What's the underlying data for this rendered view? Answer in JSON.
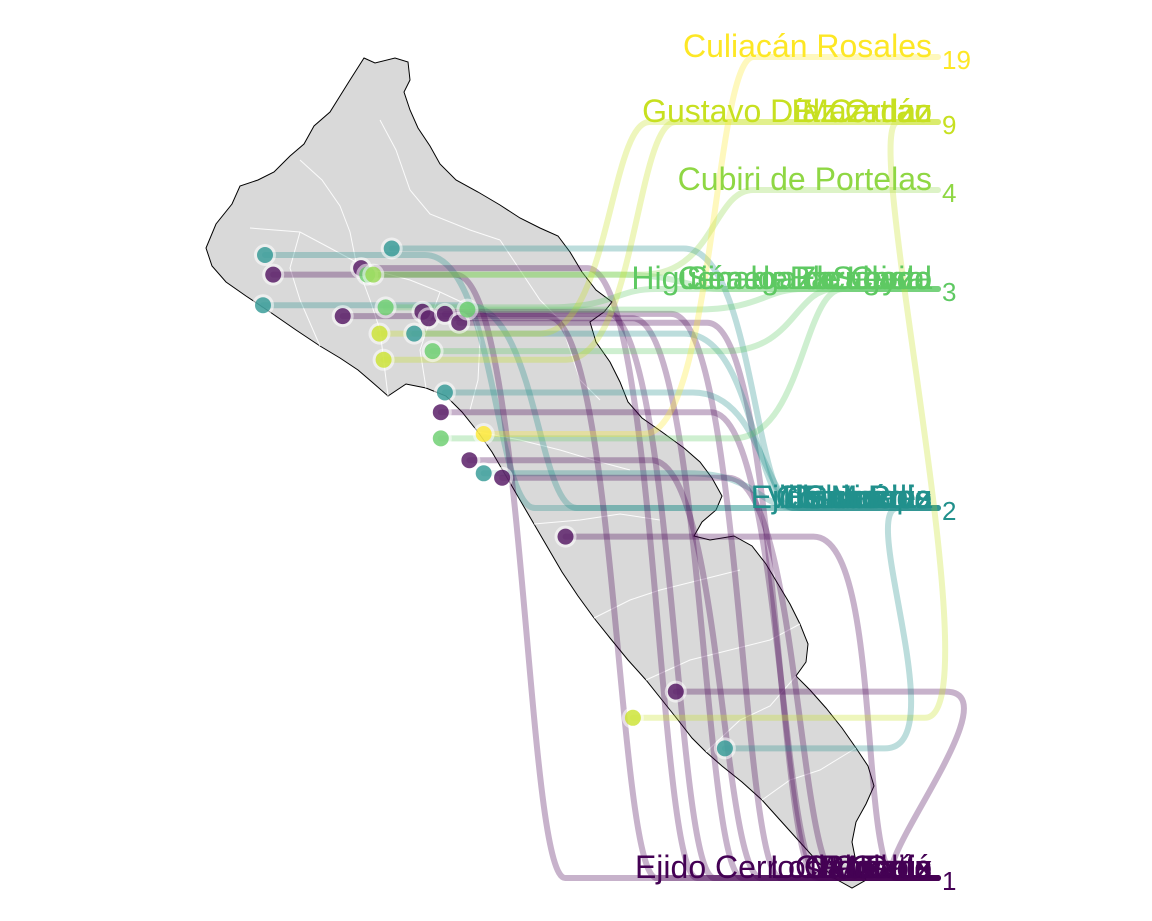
{
  "map": {
    "region": "Sinaloa",
    "region_fill": "#d9d9d9",
    "boundary_color": "#ffffff",
    "outline_color": "#000000"
  },
  "color_scale": {
    "name": "viridis",
    "stops": {
      "1": "#440154",
      "2": "#21908c",
      "3": "#5ec962",
      "4": "#8fd744",
      "9": "#c7e020",
      "19": "#fde725"
    }
  },
  "groups": [
    {
      "count": 19,
      "count_label": "19",
      "color": "#fde725",
      "labels": [
        "Culiacán Rosales"
      ]
    },
    {
      "count": 9,
      "count_label": "9",
      "color": "#c7e020",
      "labels": [
        "Gustavo Díaz Ordaz",
        "Mazatlán",
        "El Carrizo"
      ]
    },
    {
      "count": 4,
      "count_label": "4",
      "color": "#8fd744",
      "labels": [
        "Cubiri de Portelas"
      ]
    },
    {
      "count": 3,
      "count_label": "3",
      "color": "#5ec962",
      "labels": [
        "Ciénega de Casal",
        "Sinaloa de Leyva",
        "Bacubirito",
        "Higuera de Zaragoza",
        "El Salado"
      ]
    },
    {
      "count": 2,
      "count_label": "2",
      "color": "#21908c",
      "labels": [
        "Ejido Mochis",
        "Guasave",
        "Escuinapa",
        "Concordia",
        "Eldorado",
        "San Blas",
        "Villa Juárez",
        "Tamazula",
        "Costa Rica"
      ]
    },
    {
      "count": 1,
      "count_label": "1",
      "color": "#440154",
      "labels": [
        "Ejido Cerro Cabezón",
        "Choix",
        "Los Mochis",
        "Mocorito",
        "Cosalá",
        "Elota",
        "Chametla",
        "La Cruz",
        "Rosario"
      ]
    }
  ],
  "points": [
    {
      "lon": -108.85,
      "lat": 26.42,
      "count": 2
    },
    {
      "lon": -108.81,
      "lat": 26.33,
      "count": 1
    },
    {
      "lon": -108.86,
      "lat": 26.19,
      "count": 2
    },
    {
      "lon": -108.38,
      "lat": 26.36,
      "count": 1
    },
    {
      "lon": -108.35,
      "lat": 26.33,
      "count": 3
    },
    {
      "lon": -108.32,
      "lat": 26.33,
      "count": 4
    },
    {
      "lon": -108.23,
      "lat": 26.45,
      "count": 2
    },
    {
      "lon": -108.26,
      "lat": 26.18,
      "count": 3
    },
    {
      "lon": -108.08,
      "lat": 26.16,
      "count": 1
    },
    {
      "lon": -108.05,
      "lat": 26.13,
      "count": 1
    },
    {
      "lon": -107.97,
      "lat": 26.15,
      "count": 1
    },
    {
      "lon": -107.9,
      "lat": 26.11,
      "count": 1
    },
    {
      "lon": -108.12,
      "lat": 26.06,
      "count": 2
    },
    {
      "lon": -108.03,
      "lat": 25.98,
      "count": 3
    },
    {
      "lon": -108.29,
      "lat": 26.06,
      "count": 9
    },
    {
      "lon": -108.27,
      "lat": 25.94,
      "count": 9
    },
    {
      "lon": -108.47,
      "lat": 26.14,
      "count": 1
    },
    {
      "lon": -107.86,
      "lat": 26.17,
      "count": 3
    },
    {
      "lon": -107.97,
      "lat": 25.79,
      "count": 2
    },
    {
      "lon": -107.99,
      "lat": 25.7,
      "count": 1
    },
    {
      "lon": -107.99,
      "lat": 25.58,
      "count": 3
    },
    {
      "lon": -107.78,
      "lat": 25.6,
      "count": 19
    },
    {
      "lon": -107.85,
      "lat": 25.48,
      "count": 1
    },
    {
      "lon": -107.78,
      "lat": 25.42,
      "count": 2
    },
    {
      "lon": -107.69,
      "lat": 25.4,
      "count": 1
    },
    {
      "lon": -107.38,
      "lat": 25.13,
      "count": 1
    },
    {
      "lon": -106.84,
      "lat": 24.42,
      "count": 1
    },
    {
      "lon": -107.05,
      "lat": 24.3,
      "count": 9
    },
    {
      "lon": -106.6,
      "lat": 24.16,
      "count": 2
    }
  ]
}
